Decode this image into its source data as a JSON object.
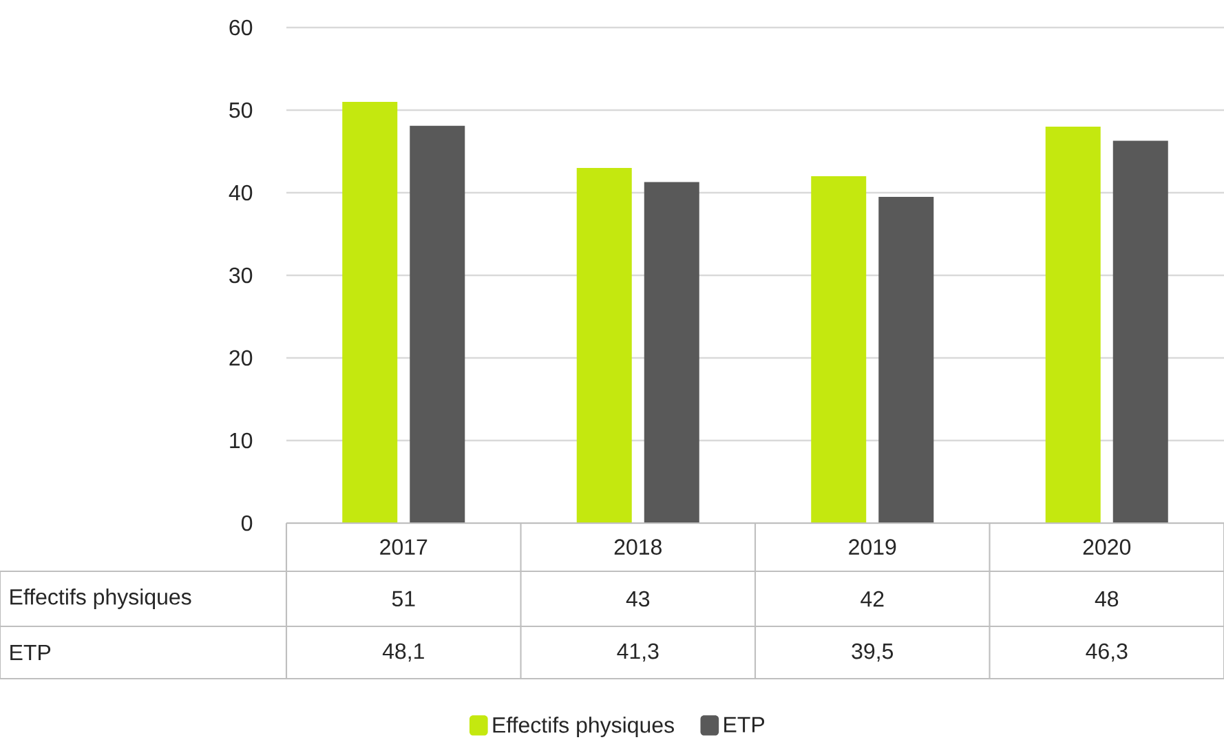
{
  "chart_data": {
    "type": "bar",
    "categories": [
      "2017",
      "2018",
      "2019",
      "2020"
    ],
    "series": [
      {
        "name": "Effectifs physiques",
        "color": "#c4e80f",
        "values": [
          51,
          43,
          42,
          48
        ],
        "value_labels": [
          "51",
          "43",
          "42",
          "48"
        ]
      },
      {
        "name": "ETP",
        "color": "#595959",
        "values": [
          48.1,
          41.3,
          39.5,
          46.3
        ],
        "value_labels": [
          "48,1",
          "41,3",
          "39,5",
          "46,3"
        ]
      }
    ],
    "ylim": [
      0,
      60
    ],
    "yticks": [
      0,
      10,
      20,
      30,
      40,
      50,
      60
    ],
    "grid": "y",
    "legend": "bottom"
  }
}
